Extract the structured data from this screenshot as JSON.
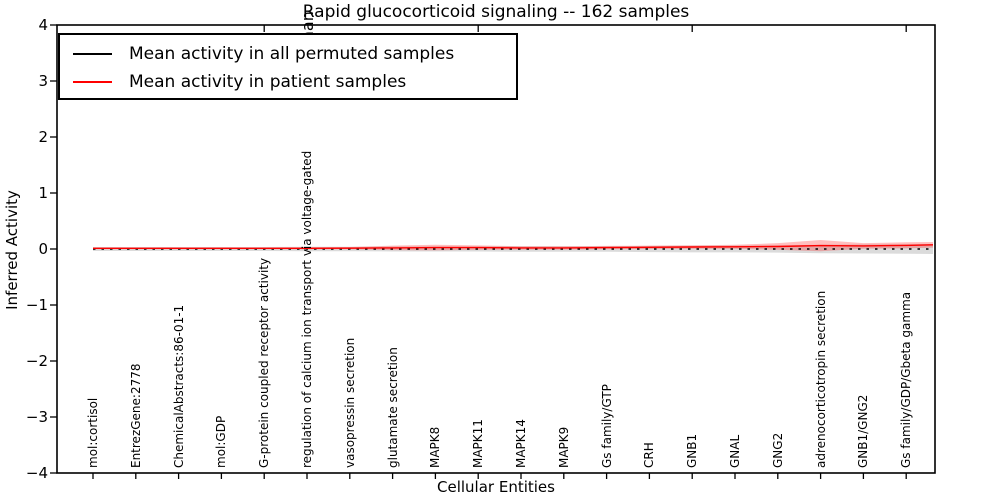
{
  "chart_data": {
    "type": "line",
    "title": "Rapid glucocorticoid signaling -- 162 samples",
    "xlabel": "Cellular Entities",
    "ylabel": "Inferred Activity",
    "ylim": [
      -4,
      4
    ],
    "ytick_labels": [
      "4",
      "3",
      "2",
      "1",
      "0",
      "−1",
      "−2",
      "−3",
      "−4"
    ],
    "grid": false,
    "legend_position": "upper left",
    "categories": [
      "mol:cortisol",
      "EntrezGene:2778",
      "ChemicalAbstracts:86-01-1",
      "mol:GDP",
      "G-protein coupled receptor activity",
      "regulation of calcium ion transport via voltage-gated",
      "vasopressin secretion",
      "glutamate secretion",
      "MAPK8",
      "MAPK11",
      "MAPK14",
      "MAPK9",
      "Gs family/GTP",
      "CRH",
      "GNB1",
      "GNAL",
      "GNG2",
      "adrenocorticotropin secretion",
      "GNB1/GNG2",
      "Gs family/GDP/Gbeta gamma"
    ],
    "series": [
      {
        "name": "Mean activity in all permuted samples",
        "color": "#000000",
        "line_style": "dashed",
        "band_opacity": 0.14,
        "values": [
          0,
          0,
          0,
          0,
          0,
          0,
          0,
          0,
          0,
          0,
          0,
          0,
          0,
          0,
          0,
          0,
          0,
          0,
          0,
          0
        ],
        "band": [
          0.035,
          0.035,
          0.035,
          0.035,
          0.035,
          0.04,
          0.04,
          0.045,
          0.045,
          0.045,
          0.05,
          0.05,
          0.05,
          0.055,
          0.06,
          0.06,
          0.065,
          0.075,
          0.08,
          0.085
        ],
        "edge_value": 0,
        "edge_band": 0.09
      },
      {
        "name": "Mean activity in patient samples",
        "color": "#ff0000",
        "line_style": "solid",
        "band_opacity": 0.25,
        "values": [
          0.012,
          0.012,
          0.012,
          0.012,
          0.012,
          0.012,
          0.015,
          0.02,
          0.025,
          0.025,
          0.02,
          0.02,
          0.025,
          0.03,
          0.035,
          0.04,
          0.045,
          0.06,
          0.055,
          0.065
        ],
        "band": [
          0.015,
          0.015,
          0.015,
          0.015,
          0.015,
          0.02,
          0.02,
          0.04,
          0.05,
          0.04,
          0.03,
          0.03,
          0.03,
          0.03,
          0.03,
          0.035,
          0.06,
          0.1,
          0.05,
          0.055
        ],
        "edge_value": 0.075,
        "edge_band": 0.05
      }
    ],
    "top_tick_every": 5
  },
  "overflow_fragment": {
    "text": "chan"
  }
}
